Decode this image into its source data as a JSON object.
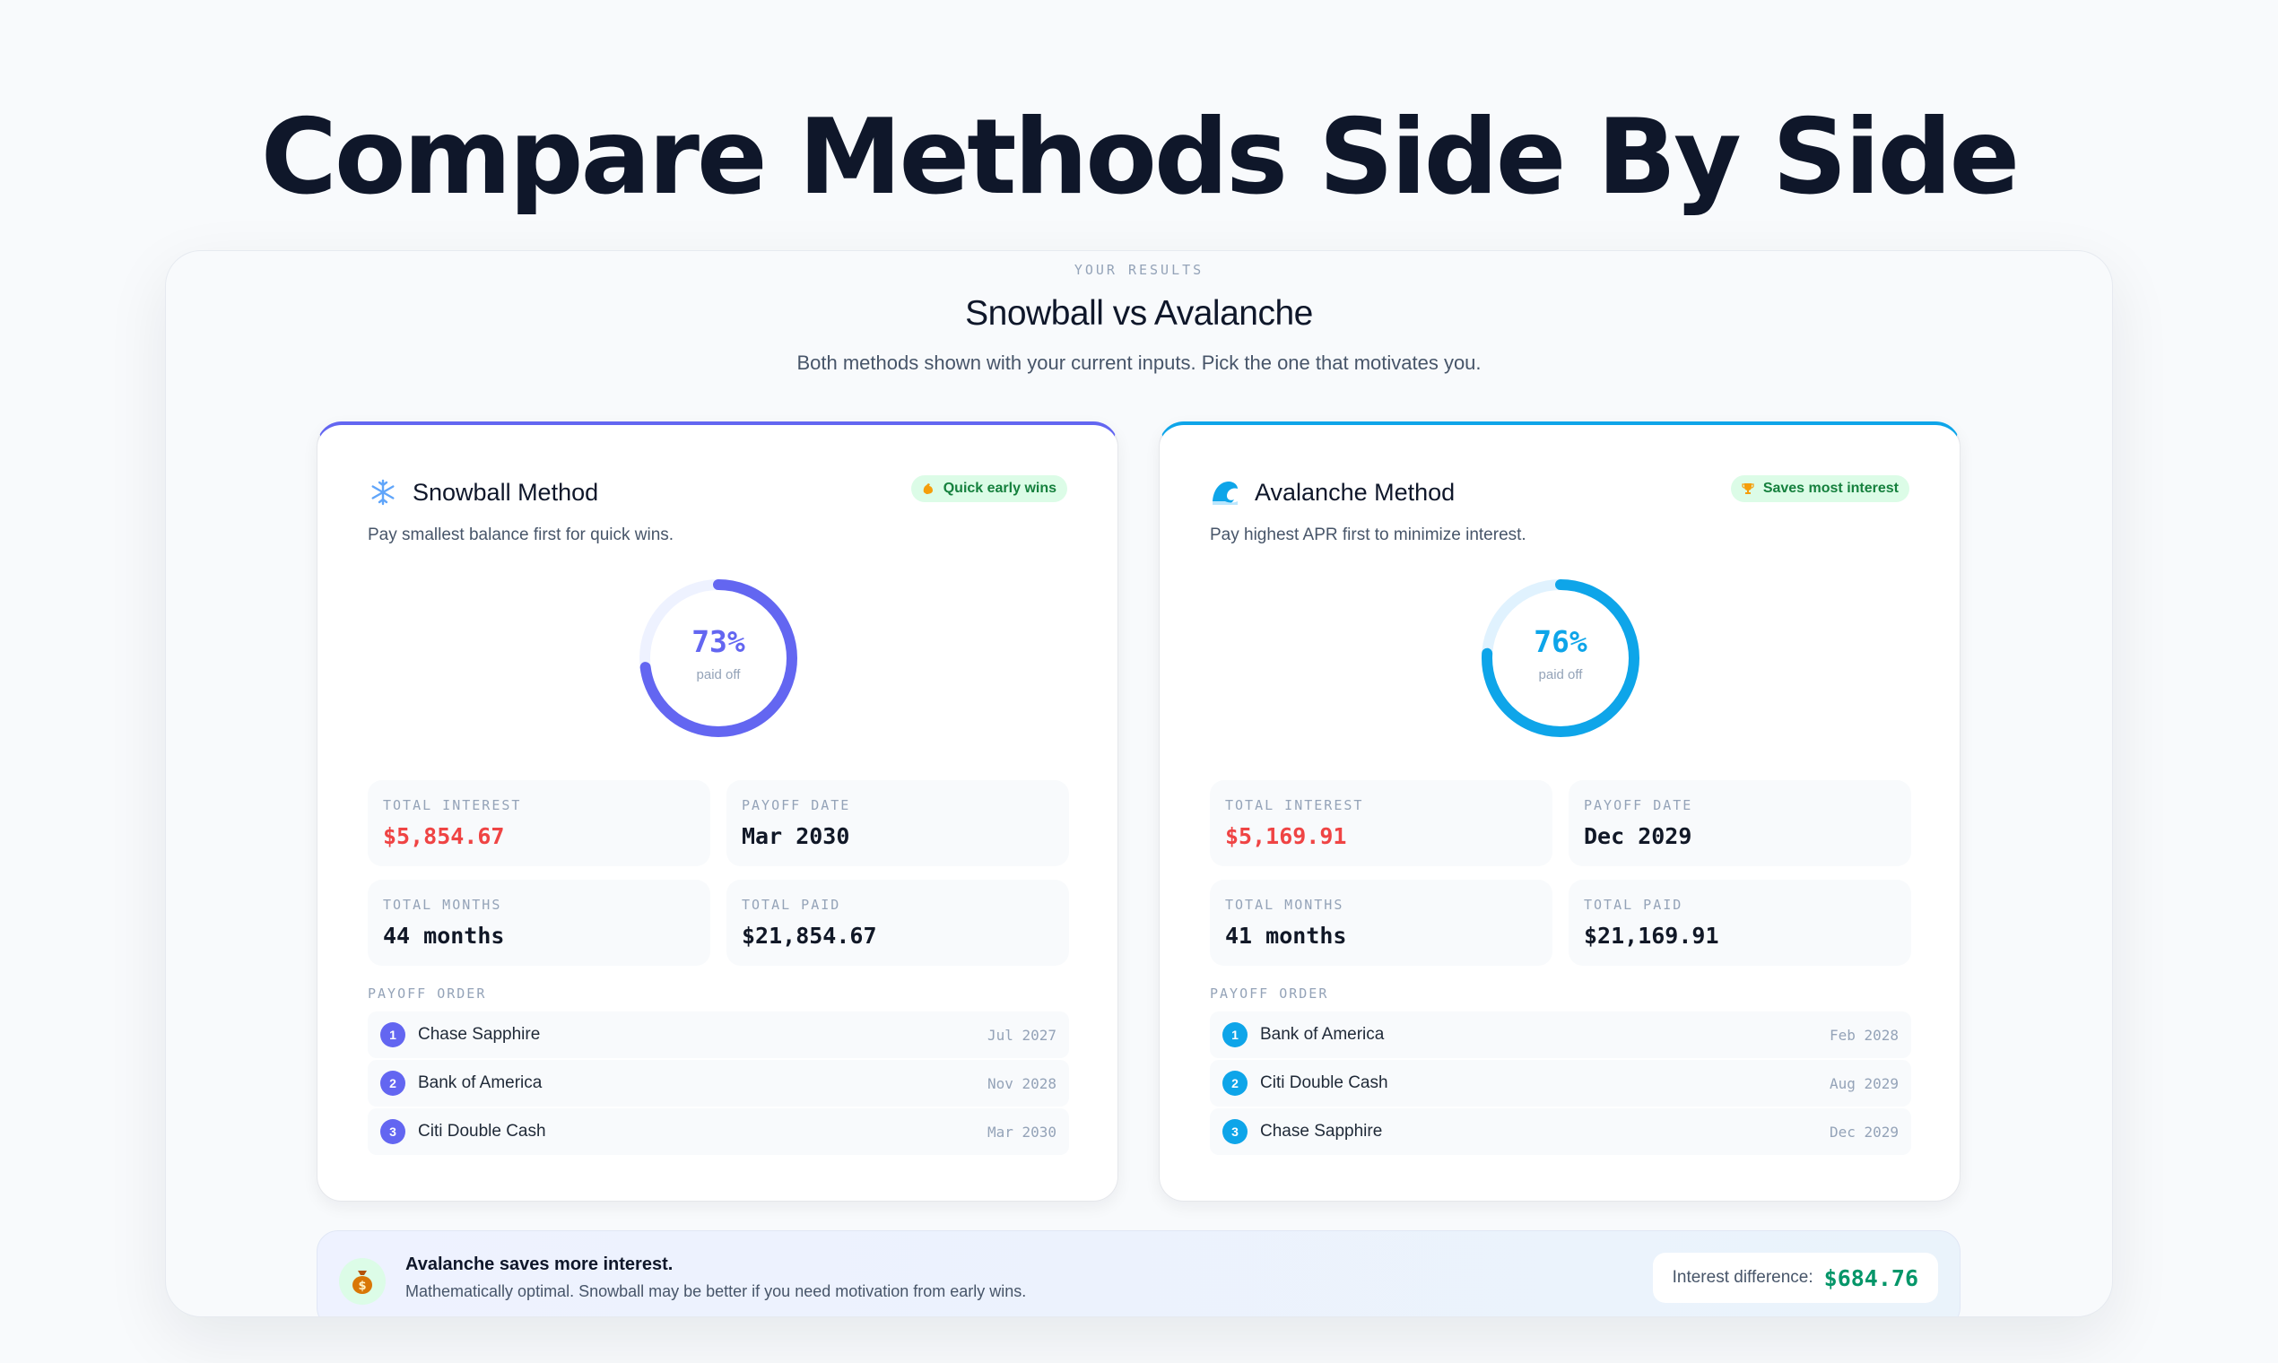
{
  "headline": "Compare Methods Side By Side",
  "panel": {
    "eyebrow": "YOUR RESULTS",
    "title": "Snowball vs Avalanche",
    "subtitle": "Both methods shown with your current inputs. Pick the one that motivates you."
  },
  "colors": {
    "snowball_accent": "#6366f1",
    "avalanche_accent": "#0ea5e9",
    "interest_red": "#ef4444",
    "savings_green": "#059669",
    "badge_bg": "#dcfce7"
  },
  "snowball": {
    "icon": "snowflake-icon",
    "title": "Snowball Method",
    "description": "Pay smallest balance first for quick wins.",
    "badge_icon": "flexed-arm-icon",
    "badge": "Quick early wins",
    "percent_paid": 73,
    "percent_text": "73%",
    "percent_label": "paid off",
    "stats": {
      "total_interest_label": "TOTAL INTEREST",
      "total_interest": "$5,854.67",
      "payoff_date_label": "PAYOFF DATE",
      "payoff_date": "Mar 2030",
      "total_months_label": "TOTAL MONTHS",
      "total_months": "44 months",
      "total_paid_label": "TOTAL PAID",
      "total_paid": "$21,854.67"
    },
    "order_label": "PAYOFF ORDER",
    "order": [
      {
        "num": "1",
        "name": "Chase Sapphire",
        "date": "Jul 2027"
      },
      {
        "num": "2",
        "name": "Bank of America",
        "date": "Nov 2028"
      },
      {
        "num": "3",
        "name": "Citi Double Cash",
        "date": "Mar 2030"
      }
    ]
  },
  "avalanche": {
    "icon": "wave-icon",
    "title": "Avalanche Method",
    "description": "Pay highest APR first to minimize interest.",
    "badge_icon": "trophy-icon",
    "badge": "Saves most interest",
    "percent_paid": 76,
    "percent_text": "76%",
    "percent_label": "paid off",
    "stats": {
      "total_interest_label": "TOTAL INTEREST",
      "total_interest": "$5,169.91",
      "payoff_date_label": "PAYOFF DATE",
      "payoff_date": "Dec 2029",
      "total_months_label": "TOTAL MONTHS",
      "total_months": "41 months",
      "total_paid_label": "TOTAL PAID",
      "total_paid": "$21,169.91"
    },
    "order_label": "PAYOFF ORDER",
    "order": [
      {
        "num": "1",
        "name": "Bank of America",
        "date": "Feb 2028"
      },
      {
        "num": "2",
        "name": "Citi Double Cash",
        "date": "Aug 2029"
      },
      {
        "num": "3",
        "name": "Chase Sapphire",
        "date": "Dec 2029"
      }
    ]
  },
  "summary": {
    "icon": "money-bag-icon",
    "title": "Avalanche saves more interest.",
    "text": "Mathematically optimal. Snowball may be better if you need motivation from early wins.",
    "diff_label": "Interest difference:",
    "diff_value": "$684.76"
  }
}
